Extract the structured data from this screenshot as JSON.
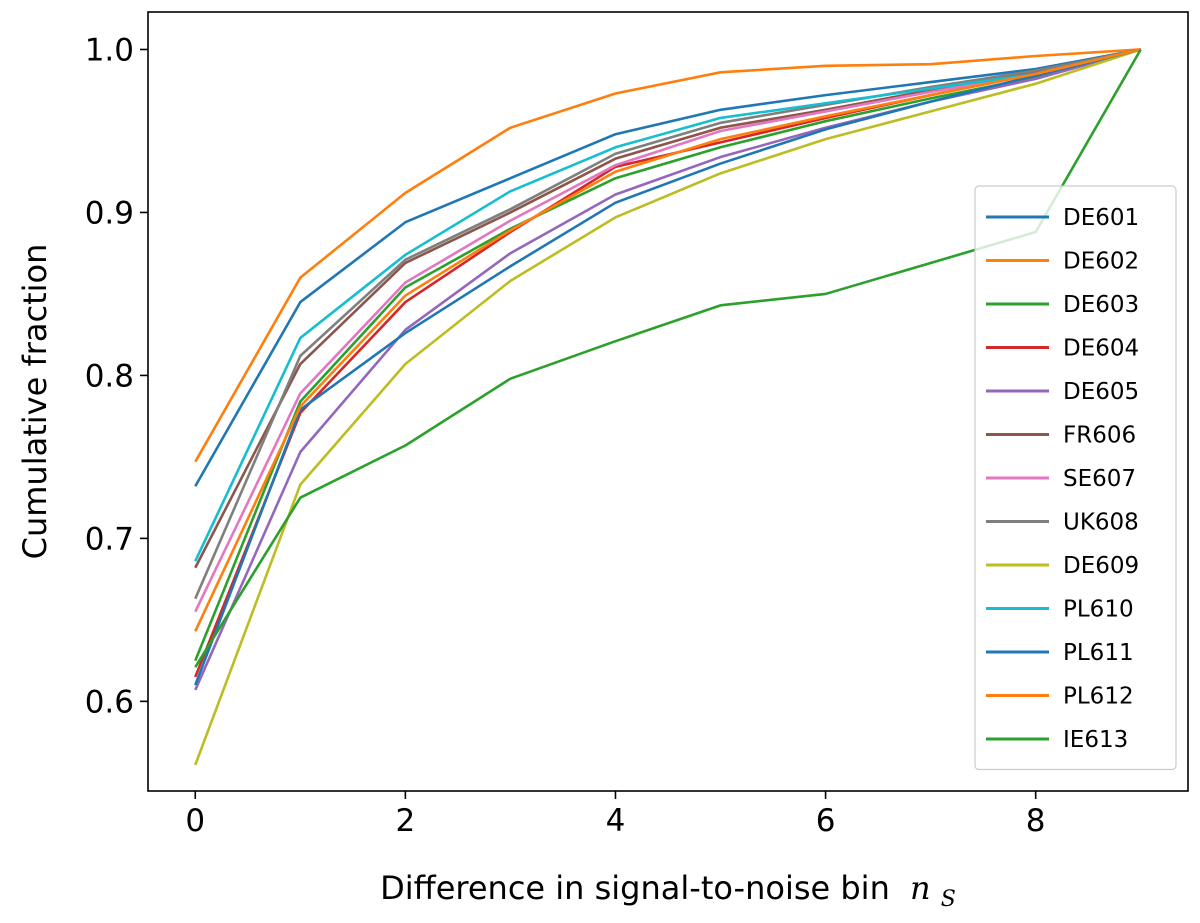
{
  "chart_data": {
    "type": "line",
    "title": "",
    "xlabel": "Difference in signal-to-noise bin",
    "xlabel_math": "n",
    "xlabel_math_sub": "S",
    "ylabel": "Cumulative fraction",
    "xlim": [
      -0.45,
      9.45
    ],
    "ylim": [
      0.545,
      1.023
    ],
    "x_ticks": [
      0,
      2,
      4,
      6,
      8
    ],
    "x_tick_labels": [
      "0",
      "2",
      "4",
      "6",
      "8"
    ],
    "y_ticks": [
      0.6,
      0.7,
      0.8,
      0.9,
      1.0
    ],
    "y_tick_labels": [
      "0.6",
      "0.7",
      "0.8",
      "0.9",
      "1.0"
    ],
    "grid": false,
    "legend_position": "lower-right",
    "x": [
      0,
      1,
      2,
      3,
      4,
      5,
      6,
      7,
      8,
      9
    ],
    "series": [
      {
        "name": "DE601",
        "color": "#1f77b4",
        "values": [
          0.732,
          0.845,
          0.894,
          0.921,
          0.948,
          0.963,
          0.972,
          0.98,
          0.988,
          1.0
        ]
      },
      {
        "name": "DE602",
        "color": "#ff7f0e",
        "values": [
          0.747,
          0.86,
          0.912,
          0.952,
          0.973,
          0.986,
          0.99,
          0.991,
          0.996,
          1.0
        ]
      },
      {
        "name": "DE603",
        "color": "#2ca02c",
        "values": [
          0.625,
          0.784,
          0.854,
          0.89,
          0.921,
          0.94,
          0.956,
          0.97,
          0.983,
          1.0
        ]
      },
      {
        "name": "DE604",
        "color": "#d62728",
        "values": [
          0.615,
          0.777,
          0.845,
          0.888,
          0.928,
          0.943,
          0.958,
          0.972,
          0.985,
          1.0
        ]
      },
      {
        "name": "DE605",
        "color": "#9467bd",
        "values": [
          0.607,
          0.753,
          0.828,
          0.875,
          0.911,
          0.934,
          0.952,
          0.968,
          0.982,
          1.0
        ]
      },
      {
        "name": "FR606",
        "color": "#8c564b",
        "values": [
          0.682,
          0.807,
          0.869,
          0.9,
          0.933,
          0.952,
          0.963,
          0.975,
          0.986,
          1.0
        ]
      },
      {
        "name": "SE607",
        "color": "#e377c2",
        "values": [
          0.655,
          0.789,
          0.857,
          0.895,
          0.929,
          0.95,
          0.962,
          0.974,
          0.985,
          1.0
        ]
      },
      {
        "name": "UK608",
        "color": "#7f7f7f",
        "values": [
          0.663,
          0.812,
          0.871,
          0.902,
          0.936,
          0.955,
          0.966,
          0.977,
          0.987,
          1.0
        ]
      },
      {
        "name": "DE609",
        "color": "#bcbd22",
        "values": [
          0.561,
          0.733,
          0.807,
          0.858,
          0.897,
          0.924,
          0.945,
          0.962,
          0.979,
          1.0
        ]
      },
      {
        "name": "PL610",
        "color": "#17becf",
        "values": [
          0.686,
          0.823,
          0.874,
          0.913,
          0.94,
          0.958,
          0.967,
          0.976,
          0.985,
          1.0
        ]
      },
      {
        "name": "PL611",
        "color": "#1f77b4",
        "values": [
          0.61,
          0.779,
          0.826,
          0.867,
          0.906,
          0.93,
          0.951,
          0.968,
          0.984,
          1.0
        ]
      },
      {
        "name": "PL612",
        "color": "#ff7f0e",
        "values": [
          0.643,
          0.781,
          0.849,
          0.889,
          0.925,
          0.945,
          0.959,
          0.972,
          0.985,
          1.0
        ]
      },
      {
        "name": "IE613",
        "color": "#2ca02c",
        "values": [
          0.621,
          0.725,
          0.757,
          0.798,
          0.821,
          0.843,
          0.85,
          0.869,
          0.888,
          1.0
        ]
      }
    ]
  }
}
